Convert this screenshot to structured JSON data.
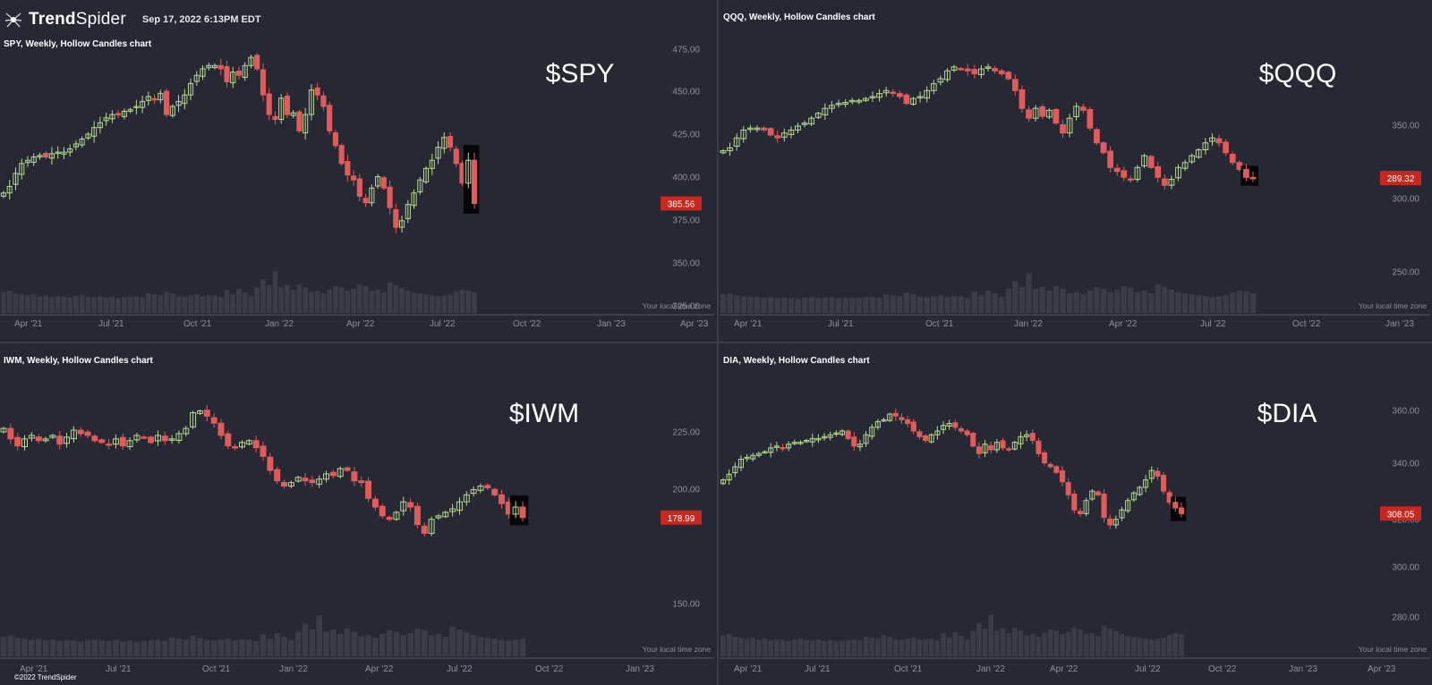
{
  "header": {
    "brand_a": "Trend",
    "brand_b": "Spider",
    "timestamp": "Sep 17, 2022 6:13PM EDT"
  },
  "footer": {
    "copyright": "©2022 TrendSpider"
  },
  "colors": {
    "background": "#262834",
    "up": "#b8d98f",
    "down": "#e25b5b",
    "price_badge": "#c7271d",
    "axis_text": "#8d8f99",
    "divider": "#3a3d4a"
  },
  "chart_data": [
    {
      "type": "candlestick",
      "symbol": "SPY",
      "title": "SPY, Weekly, Hollow Candles chart",
      "big_label": "$SPY",
      "price_label": "385.56",
      "last_price": 385.56,
      "y_ticks": [
        "475.00",
        "450.00",
        "425.00",
        "400.00",
        "375.00",
        "350.00",
        "325.00"
      ],
      "ylim": [
        324,
        480
      ],
      "x_ticks": [
        "Apr '21",
        "Jul '21",
        "Oct '21",
        "Jan '22",
        "Apr '22",
        "Jul '22",
        "Oct '22",
        "Jan '23",
        "Apr '23"
      ],
      "timezone_note": "Your local time zone",
      "closes": [
        392,
        396,
        404,
        410,
        412,
        414,
        415,
        414,
        416,
        417,
        417,
        419,
        422,
        425,
        428,
        432,
        435,
        438,
        440,
        440,
        442,
        443,
        445,
        448,
        451,
        449,
        453,
        440,
        445,
        448,
        452,
        459,
        464,
        468,
        470,
        470,
        468,
        460,
        466,
        464,
        470,
        475,
        468,
        452,
        440,
        437,
        450,
        440,
        441,
        430,
        440,
        455,
        452,
        445,
        430,
        421,
        410,
        403,
        400,
        390,
        386,
        395,
        402,
        395,
        383,
        371,
        375,
        385,
        392,
        400,
        407,
        412,
        420,
        426,
        420,
        410,
        398,
        412,
        385.56
      ],
      "volumes": [
        0.45,
        0.48,
        0.42,
        0.4,
        0.38,
        0.4,
        0.36,
        0.38,
        0.34,
        0.36,
        0.35,
        0.33,
        0.36,
        0.38,
        0.35,
        0.34,
        0.36,
        0.33,
        0.35,
        0.32,
        0.34,
        0.35,
        0.36,
        0.34,
        0.42,
        0.4,
        0.38,
        0.46,
        0.42,
        0.36,
        0.35,
        0.38,
        0.4,
        0.36,
        0.38,
        0.38,
        0.34,
        0.5,
        0.4,
        0.52,
        0.44,
        0.36,
        0.55,
        0.72,
        0.6,
        0.9,
        0.55,
        0.6,
        0.5,
        0.62,
        0.55,
        0.45,
        0.48,
        0.42,
        0.5,
        0.58,
        0.55,
        0.48,
        0.52,
        0.62,
        0.58,
        0.48,
        0.5,
        0.44,
        0.66,
        0.6,
        0.54,
        0.48,
        0.44,
        0.42,
        0.4,
        0.38,
        0.36,
        0.38,
        0.4,
        0.46,
        0.5,
        0.48,
        0.45
      ]
    },
    {
      "type": "candlestick",
      "symbol": "QQQ",
      "title": "QQQ, Weekly, Hollow Candles chart",
      "big_label": "$QQQ",
      "price_label": "289.32",
      "last_price": 289.32,
      "y_ticks": [
        "350.00",
        "300.00",
        "250.00"
      ],
      "ylim": [
        225,
        420
      ],
      "x_ticks": [
        "Apr '21",
        "Jul '21",
        "Oct '21",
        "Jan '22",
        "Apr '22",
        "Jul '22",
        "Oct '22",
        "Jan '23"
      ],
      "timezone_note": "Your local time zone",
      "closes": [
        317,
        320,
        330,
        338,
        340,
        340,
        338,
        333,
        330,
        335,
        338,
        342,
        345,
        350,
        355,
        360,
        363,
        365,
        366,
        368,
        368,
        370,
        372,
        375,
        378,
        375,
        372,
        365,
        370,
        372,
        378,
        385,
        390,
        398,
        402,
        400,
        398,
        395,
        400,
        402,
        398,
        395,
        390,
        378,
        360,
        350,
        360,
        352,
        358,
        345,
        335,
        350,
        362,
        358,
        340,
        325,
        315,
        300,
        296,
        290,
        288,
        300,
        312,
        300,
        290,
        282,
        288,
        300,
        305,
        312,
        318,
        325,
        330,
        325,
        315,
        305,
        298,
        290,
        289.32
      ],
      "volumes": [
        0.4,
        0.42,
        0.38,
        0.36,
        0.35,
        0.34,
        0.33,
        0.34,
        0.32,
        0.33,
        0.32,
        0.31,
        0.33,
        0.34,
        0.32,
        0.33,
        0.34,
        0.32,
        0.33,
        0.32,
        0.33,
        0.34,
        0.35,
        0.33,
        0.4,
        0.38,
        0.36,
        0.44,
        0.4,
        0.35,
        0.34,
        0.36,
        0.38,
        0.34,
        0.36,
        0.36,
        0.32,
        0.46,
        0.38,
        0.48,
        0.42,
        0.34,
        0.52,
        0.68,
        0.56,
        0.85,
        0.52,
        0.56,
        0.48,
        0.58,
        0.52,
        0.42,
        0.45,
        0.4,
        0.48,
        0.55,
        0.52,
        0.45,
        0.5,
        0.58,
        0.55,
        0.45,
        0.48,
        0.42,
        0.62,
        0.56,
        0.5,
        0.45,
        0.42,
        0.4,
        0.38,
        0.36,
        0.34,
        0.36,
        0.38,
        0.44,
        0.48,
        0.46,
        0.43
      ]
    },
    {
      "type": "candlestick",
      "symbol": "IWM",
      "title": "IWM, Weekly, Hollow Candles chart",
      "big_label": "$IWM",
      "price_label": "178.99",
      "last_price": 178.99,
      "y_ticks": [
        "225.00",
        "200.00",
        "150.00"
      ],
      "ylim": [
        140,
        250
      ],
      "x_ticks": [
        "Apr '21",
        "Jul '21",
        "Oct '21",
        "Jan '22",
        "Apr '22",
        "Jul '22",
        "Oct '22",
        "Jan '23"
      ],
      "timezone_note": "Your local time zone",
      "closes": [
        230,
        224,
        220,
        224,
        226,
        223,
        224,
        226,
        221,
        225,
        229,
        227,
        226,
        223,
        222,
        221,
        224,
        220,
        223,
        226,
        225,
        222,
        226,
        223,
        224,
        227,
        230,
        239,
        240,
        237,
        233,
        226,
        220,
        219,
        222,
        223,
        219,
        214,
        206,
        200,
        197,
        199,
        202,
        200,
        199,
        201,
        204,
        203,
        207,
        206,
        200,
        199,
        190,
        185,
        180,
        178,
        182,
        188,
        185,
        175,
        170,
        178,
        180,
        182,
        184,
        188,
        192,
        195,
        197,
        196,
        192,
        187,
        181,
        185,
        178.99
      ],
      "volumes": [
        0.42,
        0.46,
        0.4,
        0.38,
        0.36,
        0.38,
        0.35,
        0.36,
        0.33,
        0.35,
        0.34,
        0.32,
        0.35,
        0.36,
        0.34,
        0.33,
        0.35,
        0.32,
        0.34,
        0.31,
        0.33,
        0.34,
        0.35,
        0.33,
        0.4,
        0.38,
        0.36,
        0.44,
        0.4,
        0.35,
        0.34,
        0.36,
        0.38,
        0.34,
        0.36,
        0.36,
        0.33,
        0.48,
        0.38,
        0.5,
        0.42,
        0.35,
        0.53,
        0.7,
        0.58,
        0.88,
        0.53,
        0.58,
        0.48,
        0.6,
        0.53,
        0.43,
        0.46,
        0.4,
        0.48,
        0.56,
        0.53,
        0.46,
        0.5,
        0.6,
        0.56,
        0.46,
        0.48,
        0.42,
        0.64,
        0.58,
        0.52,
        0.46,
        0.42,
        0.4,
        0.38,
        0.36,
        0.34,
        0.36,
        0.38
      ]
    },
    {
      "type": "candlestick",
      "symbol": "DIA",
      "title": "DIA, Weekly, Hollow Candles chart",
      "big_label": "$DIA",
      "price_label": "308.05",
      "last_price": 308.05,
      "y_ticks": [
        "360.00",
        "340.00",
        "320.00",
        "300.00",
        "280.00"
      ],
      "ylim": [
        272,
        372
      ],
      "x_ticks": [
        "Apr '21",
        "Jul '21",
        "Oct '21",
        "Jan '22",
        "Apr '22",
        "Jul '22",
        "Oct '22",
        "Jan '23",
        "Apr '23"
      ],
      "timezone_note": "Your local time zone",
      "closes": [
        326,
        329,
        333,
        337,
        338,
        339,
        340,
        341,
        343,
        344,
        343,
        345,
        346,
        346,
        347,
        348,
        348,
        349,
        350,
        351,
        352,
        348,
        344,
        345,
        350,
        354,
        357,
        358,
        361,
        360,
        358,
        356,
        352,
        349,
        347,
        350,
        352,
        355,
        356,
        354,
        352,
        350,
        344,
        340,
        345,
        342,
        346,
        343,
        342,
        346,
        349,
        350,
        347,
        340,
        335,
        333,
        330,
        325,
        318,
        310,
        308,
        315,
        320,
        318,
        306,
        302,
        305,
        310,
        315,
        319,
        322,
        326,
        331,
        328,
        320,
        314,
        311,
        308.05
      ],
      "volumes": [
        0.45,
        0.48,
        0.42,
        0.4,
        0.38,
        0.4,
        0.36,
        0.38,
        0.34,
        0.36,
        0.35,
        0.33,
        0.36,
        0.38,
        0.35,
        0.34,
        0.36,
        0.33,
        0.35,
        0.32,
        0.34,
        0.35,
        0.36,
        0.34,
        0.42,
        0.4,
        0.38,
        0.46,
        0.42,
        0.36,
        0.35,
        0.38,
        0.4,
        0.36,
        0.38,
        0.38,
        0.34,
        0.5,
        0.4,
        0.52,
        0.44,
        0.36,
        0.55,
        0.72,
        0.6,
        0.9,
        0.55,
        0.6,
        0.5,
        0.62,
        0.55,
        0.45,
        0.48,
        0.42,
        0.5,
        0.58,
        0.55,
        0.48,
        0.52,
        0.62,
        0.58,
        0.48,
        0.5,
        0.44,
        0.66,
        0.6,
        0.54,
        0.48,
        0.44,
        0.42,
        0.4,
        0.38,
        0.36,
        0.38,
        0.4,
        0.46,
        0.5,
        0.48
      ]
    }
  ]
}
